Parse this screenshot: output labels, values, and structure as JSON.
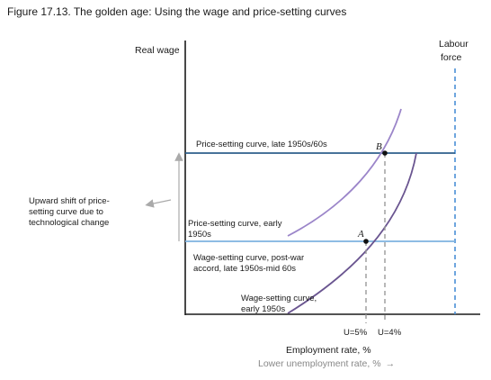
{
  "figure": {
    "title": "Figure 17.13. The golden age: Using the wage and price-setting curves"
  },
  "axes": {
    "y_label": "Real wage",
    "x_label": "Employment rate, %",
    "x_sublabel": "Lower unemployment rate, %",
    "x_sublabel_arrow": "→"
  },
  "labour_force": {
    "line1": "Labour",
    "line2": "force"
  },
  "curves": {
    "ps_late": "Price-setting curve, late 1950s/60s",
    "ps_early_1": "Price-setting curve, early",
    "ps_early_2": "1950s",
    "ws_post_1": "Wage-setting curve, post-war",
    "ws_post_2": "accord, late 1950s-mid 60s",
    "ws_early_1": "Wage-setting curve,",
    "ws_early_2": "early 1950s"
  },
  "annotation": {
    "line1": "Upward shift of price-",
    "line2": "setting curve due to",
    "line3": "technological change"
  },
  "points": {
    "a": "A",
    "b": "B"
  },
  "unemployment": {
    "u5": "U=5%",
    "u4": "U=4%"
  },
  "colors": {
    "ps_late": "#2e5f8c",
    "ps_early": "#7eb3e0",
    "ws_post": "#9b85c9",
    "ws_early": "#6a5590",
    "labour_force": "#4a8fd6",
    "dashed": "#999999"
  }
}
